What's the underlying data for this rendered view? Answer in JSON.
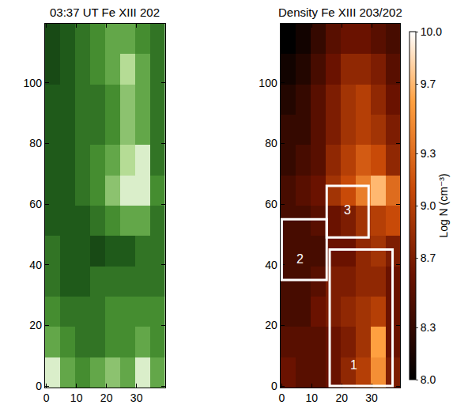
{
  "chart_data": [
    {
      "type": "heatmap",
      "title": "03:37 UT Fe XIII 202",
      "x": [
        2,
        7,
        12,
        17,
        22,
        27,
        32,
        37
      ],
      "y": [
        4.5,
        14.5,
        24.5,
        34.5,
        44.5,
        54.5,
        64.5,
        74.5,
        84.5,
        94.5,
        104.5,
        114.5
      ],
      "z": [
        [
          0.9,
          0.6,
          0.5,
          0.6,
          0.7,
          0.6,
          0.9,
          0.6
        ],
        [
          0.6,
          0.5,
          0.4,
          0.4,
          0.5,
          0.5,
          0.6,
          0.5
        ],
        [
          0.5,
          0.4,
          0.4,
          0.4,
          0.5,
          0.5,
          0.5,
          0.5
        ],
        [
          0.4,
          0.3,
          0.3,
          0.4,
          0.4,
          0.4,
          0.4,
          0.4
        ],
        [
          0.4,
          0.3,
          0.3,
          0.2,
          0.3,
          0.3,
          0.4,
          0.4
        ],
        [
          0.3,
          0.3,
          0.3,
          0.4,
          0.5,
          0.6,
          0.6,
          0.4
        ],
        [
          0.3,
          0.3,
          0.4,
          0.5,
          0.7,
          0.9,
          0.9,
          0.5
        ],
        [
          0.3,
          0.3,
          0.4,
          0.5,
          0.6,
          0.8,
          0.9,
          0.4
        ],
        [
          0.3,
          0.3,
          0.4,
          0.4,
          0.5,
          0.7,
          0.6,
          0.4
        ],
        [
          0.3,
          0.3,
          0.4,
          0.4,
          0.5,
          0.7,
          0.6,
          0.4
        ],
        [
          0.2,
          0.3,
          0.4,
          0.5,
          0.6,
          0.8,
          0.6,
          0.4
        ],
        [
          0.2,
          0.3,
          0.4,
          0.5,
          0.6,
          0.6,
          0.5,
          0.4
        ]
      ],
      "zlim": [
        0,
        1
      ],
      "xlim": [
        -0.5,
        39.5
      ],
      "ylim": [
        -0.5,
        119.5
      ],
      "xticks": [
        0,
        10,
        20,
        30
      ],
      "yticks": [
        0,
        20,
        40,
        60,
        80,
        100
      ]
    },
    {
      "type": "heatmap",
      "title": "Density Fe XIII 203/202",
      "x": [
        2,
        7,
        12,
        17,
        22,
        27,
        32,
        37
      ],
      "y": [
        4.5,
        14.5,
        24.5,
        34.5,
        44.5,
        54.5,
        64.5,
        74.5,
        84.5,
        94.5,
        104.5,
        114.5
      ],
      "z": [
        [
          8.6,
          8.5,
          8.5,
          8.6,
          8.8,
          9.0,
          9.5,
          8.7
        ],
        [
          8.5,
          8.5,
          8.5,
          8.6,
          8.7,
          8.9,
          9.6,
          8.6
        ],
        [
          8.4,
          8.4,
          8.6,
          8.7,
          8.8,
          8.9,
          9.0,
          8.6
        ],
        [
          8.4,
          8.4,
          8.5,
          8.7,
          8.7,
          8.8,
          8.8,
          8.6
        ],
        [
          8.4,
          8.4,
          8.4,
          8.6,
          8.6,
          8.8,
          8.9,
          8.7
        ],
        [
          8.4,
          8.4,
          8.5,
          8.6,
          8.7,
          8.9,
          9.0,
          9.1
        ],
        [
          8.4,
          8.5,
          8.6,
          8.9,
          9.1,
          9.4,
          9.7,
          9.3
        ],
        [
          8.3,
          8.4,
          8.5,
          8.8,
          9.0,
          9.2,
          9.1,
          8.8
        ],
        [
          8.3,
          8.3,
          8.5,
          8.7,
          8.9,
          9.0,
          8.9,
          8.7
        ],
        [
          8.2,
          8.3,
          8.5,
          8.7,
          8.9,
          9.0,
          8.8,
          8.6
        ],
        [
          8.1,
          8.2,
          8.4,
          8.6,
          8.8,
          8.8,
          8.7,
          8.5
        ],
        [
          8.0,
          8.1,
          8.3,
          8.5,
          8.6,
          8.6,
          8.5,
          8.4
        ]
      ],
      "colorbar": {
        "title": "Log N (cm⁻³)",
        "zlim": [
          8,
          10
        ],
        "ticks": [
          {
            "value": 8,
            "label": "8.0"
          },
          8.3,
          8.7,
          {
            "value": 9,
            "label": "9.0"
          },
          9.3,
          9.7,
          {
            "value": 10,
            "label": "10.0"
          }
        ]
      },
      "regions": [
        {
          "label": "1",
          "x": [
            16,
            37
          ],
          "y": [
            0,
            45
          ],
          "label_x": 24,
          "label_y": 7
        },
        {
          "label": "2",
          "x": [
            0,
            15
          ],
          "y": [
            35,
            55
          ],
          "label_x": 6,
          "label_y": 42
        },
        {
          "label": "3",
          "x": [
            15,
            29
          ],
          "y": [
            49,
            66
          ],
          "label_x": 22,
          "label_y": 58
        }
      ],
      "xlim": [
        -0.5,
        39.5
      ],
      "ylim": [
        -0.5,
        119.5
      ],
      "xticks": [
        0,
        10,
        20,
        30
      ],
      "yticks": [
        0,
        20,
        40,
        60,
        80,
        100
      ]
    }
  ]
}
